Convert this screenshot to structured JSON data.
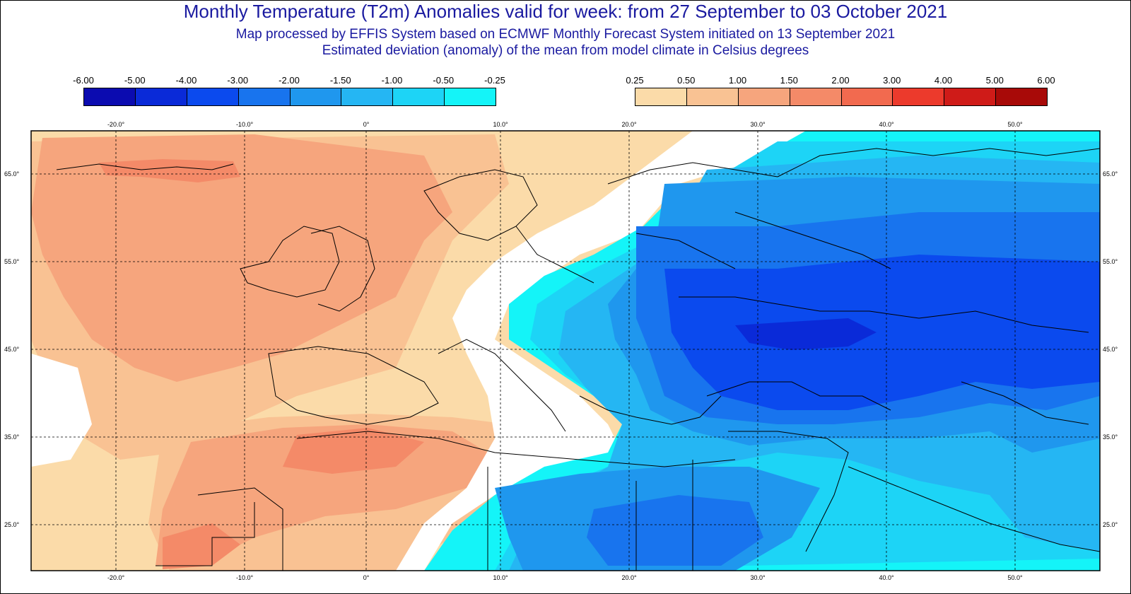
{
  "title": "Monthly Temperature (T2m) Anomalies valid for week: from 27 September to 03 October 2021",
  "subtitle_1": "Map processed by EFFIS System based on ECMWF Monthly Forecast System initiated on 13 September 2021",
  "subtitle_2": "Estimated deviation (anomaly) of the mean from model climate in Celsius degrees",
  "colorbar_negative": {
    "labels": [
      "-6.00",
      "-5.00",
      "-4.00",
      "-3.00",
      "-2.00",
      "-1.50",
      "-1.00",
      "-0.50",
      "-0.25"
    ],
    "colors": [
      "#0b0bb0",
      "#0a2ad8",
      "#0b4aee",
      "#1874ee",
      "#1f97ee",
      "#25b6f3",
      "#1dd4f6",
      "#14f4f8"
    ]
  },
  "colorbar_positive": {
    "labels": [
      "0.25",
      "0.50",
      "1.00",
      "1.50",
      "2.00",
      "3.00",
      "4.00",
      "5.00",
      "6.00"
    ],
    "colors": [
      "#fbdba9",
      "#f9c293",
      "#f6a57d",
      "#f48a68",
      "#f26a4f",
      "#ec3a2c",
      "#cf1b18",
      "#a80a08"
    ]
  },
  "map": {
    "lon_ticks": [
      "-20.0°",
      "-10.0°",
      "0°",
      "10.0°",
      "20.0°",
      "30.0°",
      "40.0°",
      "50.0°"
    ],
    "lat_ticks": [
      "65.0°",
      "55.0°",
      "45.0°",
      "35.0°",
      "25.0°"
    ],
    "colors": {
      "warm_light": "#fbdba9",
      "warm_mid": "#f9c293",
      "warm_strong": "#f6a57d",
      "warm_hot": "#f48a68",
      "neutral": "#ffffff",
      "cold_light": "#14f4f8",
      "cold_mid": "#1dd4f6",
      "cold_1": "#25b6f3",
      "cold_2": "#1f97ee",
      "cold_3": "#1874ee",
      "cold_4": "#0b4aee",
      "border": "#000000",
      "grid": "#000000"
    }
  }
}
